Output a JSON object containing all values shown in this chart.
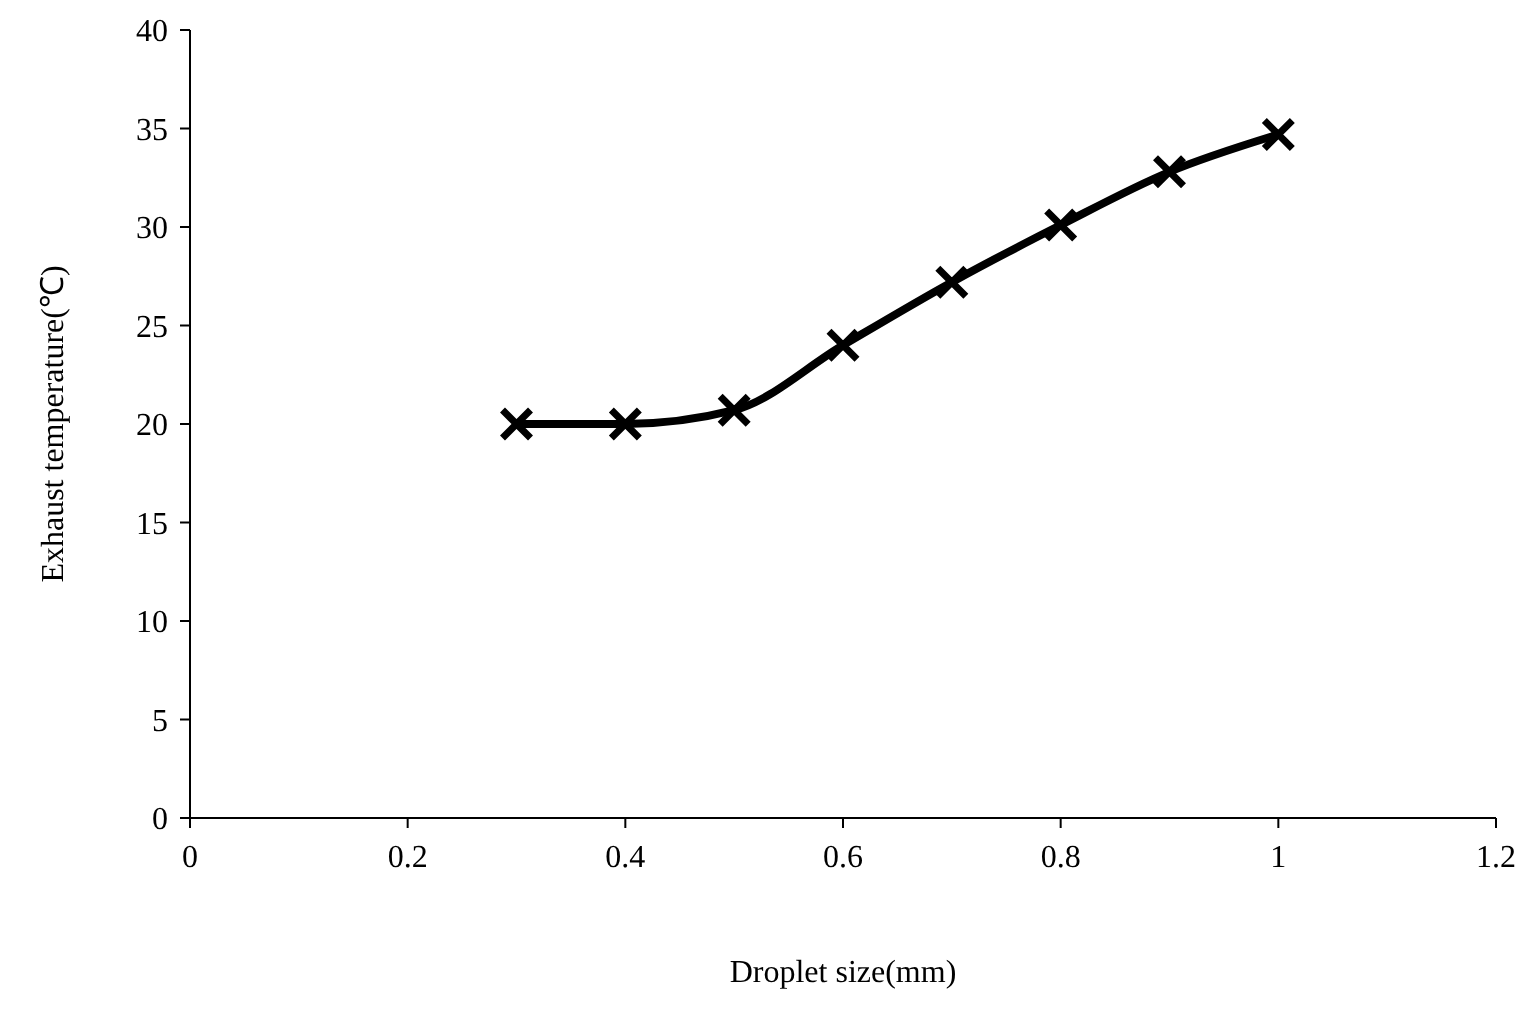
{
  "chart_data": {
    "type": "line",
    "xlabel": "Droplet size(mm)",
    "ylabel": "Exhaust temperature(℃)",
    "x": [
      0.3,
      0.4,
      0.5,
      0.6,
      0.7,
      0.8,
      0.9,
      1.0
    ],
    "series": [
      {
        "color": "#000000",
        "values": [
          20.0,
          20.0,
          20.7,
          24.0,
          27.2,
          30.1,
          32.8,
          34.7
        ]
      }
    ],
    "xlim": [
      0,
      1.2
    ],
    "xticks": [
      0,
      0.2,
      0.4,
      0.6,
      0.8,
      1,
      1.2
    ],
    "ylim": [
      0,
      40
    ],
    "yticks": [
      0,
      5,
      10,
      15,
      20,
      25,
      30,
      35,
      40
    ],
    "grid": false,
    "legend": false,
    "marker": "cross",
    "line_style": "solid"
  }
}
